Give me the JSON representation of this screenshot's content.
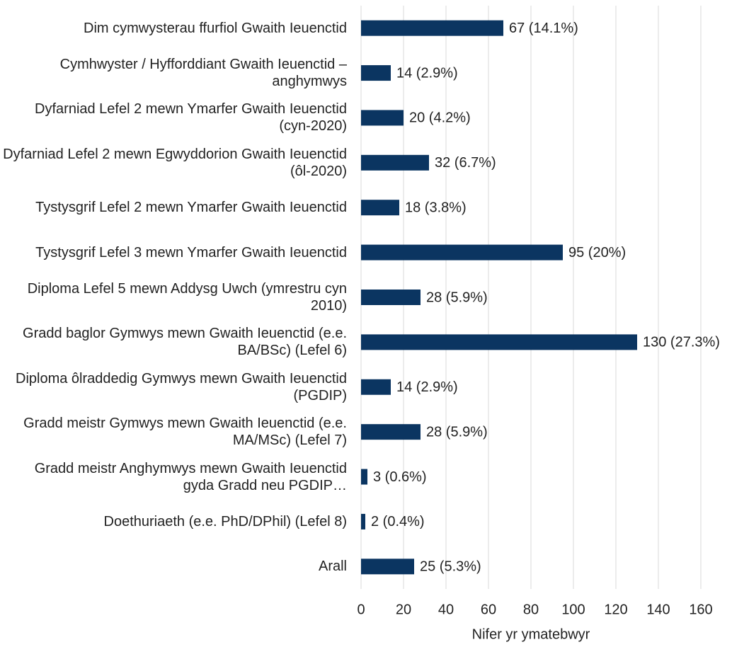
{
  "chart_data": {
    "type": "barh",
    "categories": [
      "Dim cymwysterau ffurfiol Gwaith Ieuenctid",
      "Cymhwyster / Hyfforddiant Gwaith Ieuenctid – anghymwys",
      "Dyfarniad Lefel 2 mewn Ymarfer Gwaith Ieuenctid (cyn-2020)",
      "Dyfarniad Lefel 2 mewn Egwyddorion Gwaith Ieuenctid (ôl-2020)",
      "Tystysgrif Lefel 2 mewn Ymarfer Gwaith Ieuenctid",
      "Tystysgrif Lefel 3 mewn Ymarfer Gwaith Ieuenctid",
      "Diploma Lefel 5 mewn Addysg Uwch (ymrestru cyn 2010)",
      "Gradd baglor Gymwys mewn Gwaith Ieuenctid (e.e. BA/BSc) (Lefel 6)",
      "Diploma ôlraddedig Gymwys mewn Gwaith Ieuenctid (PGDIP)",
      "Gradd meistr Gymwys mewn Gwaith Ieuenctid (e.e. MA/MSc) (Lefel 7)",
      "Gradd meistr Anghymwys mewn Gwaith Ieuenctid gyda Gradd neu PGDIP…",
      "Doethuriaeth (e.e. PhD/DPhil) (Lefel 8)",
      "Arall"
    ],
    "values": [
      67,
      14,
      20,
      32,
      18,
      95,
      28,
      130,
      14,
      28,
      3,
      2,
      25
    ],
    "value_labels": [
      "67 (14.1%)",
      "14 (2.9%)",
      "20 (4.2%)",
      "32 (6.7%)",
      "18 (3.8%)",
      "95 (20%)",
      "28 (5.9%)",
      "130 (27.3%)",
      "14 (2.9%)",
      "28 (5.9%)",
      "3 (0.6%)",
      "2 (0.4%)",
      "25 (5.3%)"
    ],
    "color": "#0b3561",
    "xlabel": "Nifer yr ymatebwyr",
    "xlim": [
      0,
      160
    ],
    "xticks": [
      0,
      20,
      40,
      60,
      80,
      100,
      120,
      140,
      160
    ],
    "grid": true
  }
}
